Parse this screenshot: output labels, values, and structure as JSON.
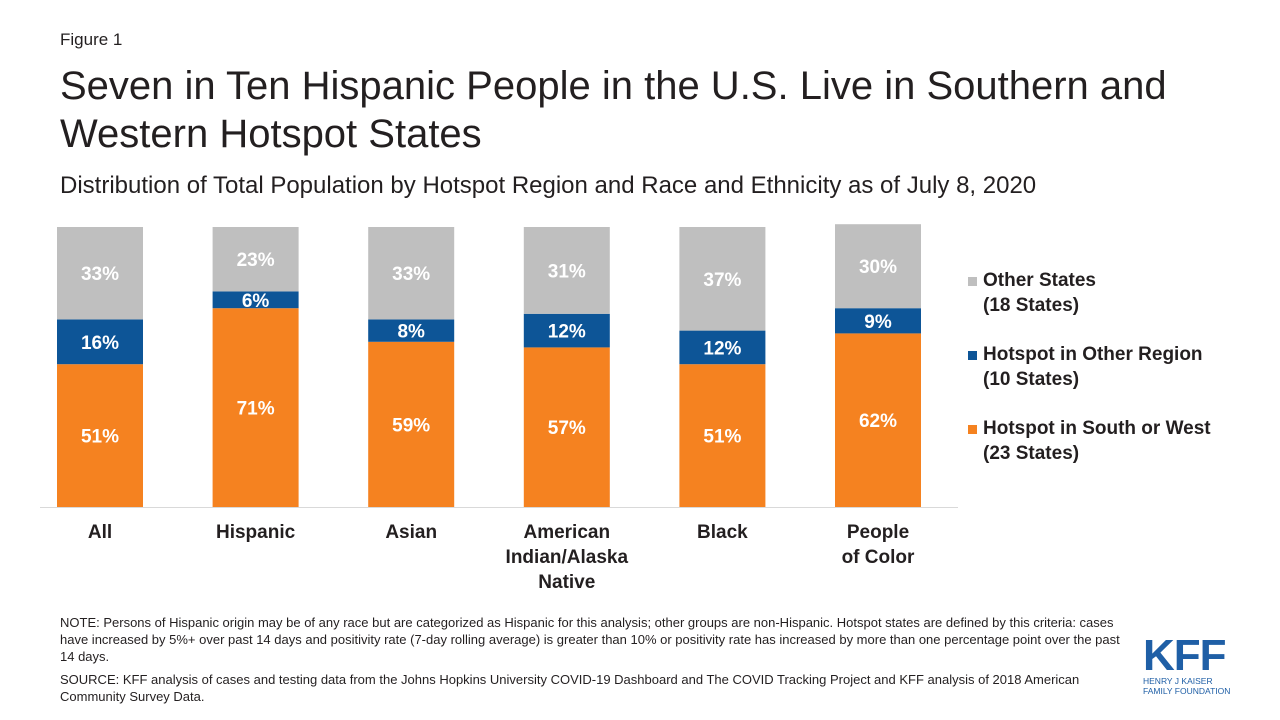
{
  "figure_label": "Figure 1",
  "title": "Seven in Ten Hispanic People in the U.S. Live in Southern and Western Hotspot States",
  "subtitle": "Distribution of Total Population by Hotspot Region and Race and Ethnicity as of July 8, 2020",
  "colors": {
    "south_west": "#f58220",
    "other_region": "#0d5597",
    "other_states": "#bfbfbf",
    "axis": "#d9d9d9"
  },
  "legend": [
    {
      "key": "other_states",
      "line1": "Other States",
      "line2": "(18 States)"
    },
    {
      "key": "other_region",
      "line1": "Hotspot in Other Region",
      "line2": "(10 States)"
    },
    {
      "key": "south_west",
      "line1": "Hotspot in South or West",
      "line2": "(23 States)"
    }
  ],
  "chart_data": {
    "type": "bar",
    "stacked": true,
    "ylim": [
      0,
      100
    ],
    "categories": [
      "All",
      "Hispanic",
      "Asian",
      "American Indian/Alaska Native",
      "Black",
      "People of Color"
    ],
    "category_labels": [
      "All",
      "Hispanic",
      "Asian",
      "American\nIndian/Alaska\nNative",
      "Black",
      "People\nof Color"
    ],
    "series": [
      {
        "name": "Hotspot in South or West (23 States)",
        "key": "south_west",
        "values": [
          51,
          71,
          59,
          57,
          51,
          62
        ],
        "labels": [
          "51%",
          "71%",
          "59%",
          "57%",
          "51%",
          "62%"
        ]
      },
      {
        "name": "Hotspot in Other Region (10 States)",
        "key": "other_region",
        "values": [
          16,
          6,
          8,
          12,
          12,
          9
        ],
        "labels": [
          "16%",
          "6%",
          "8%",
          "12%",
          "12%",
          "9%"
        ]
      },
      {
        "name": "Other States (18 States)",
        "key": "other_states",
        "values": [
          33,
          23,
          33,
          31,
          37,
          30
        ],
        "labels": [
          "33%",
          "23%",
          "33%",
          "31%",
          "37%",
          "30%"
        ]
      }
    ],
    "grid": false,
    "legend_position": "right"
  },
  "note": "NOTE: Persons of Hispanic origin may be of any race but are categorized as Hispanic for this analysis; other groups are non-Hispanic. Hotspot states are defined by this criteria: cases have increased by 5%+ over past 14 days and positivity rate (7-day rolling average) is greater than 10% or positivity rate has increased by more than one percentage point over the past 14 days.",
  "source": "SOURCE: KFF analysis of cases and testing data from the Johns Hopkins University COVID-19 Dashboard and The COVID Tracking Project and KFF analysis of 2018 American Community Survey Data.",
  "logo": {
    "letters": "KFF",
    "line1": "HENRY J KAISER",
    "line2": "FAMILY FOUNDATION"
  }
}
